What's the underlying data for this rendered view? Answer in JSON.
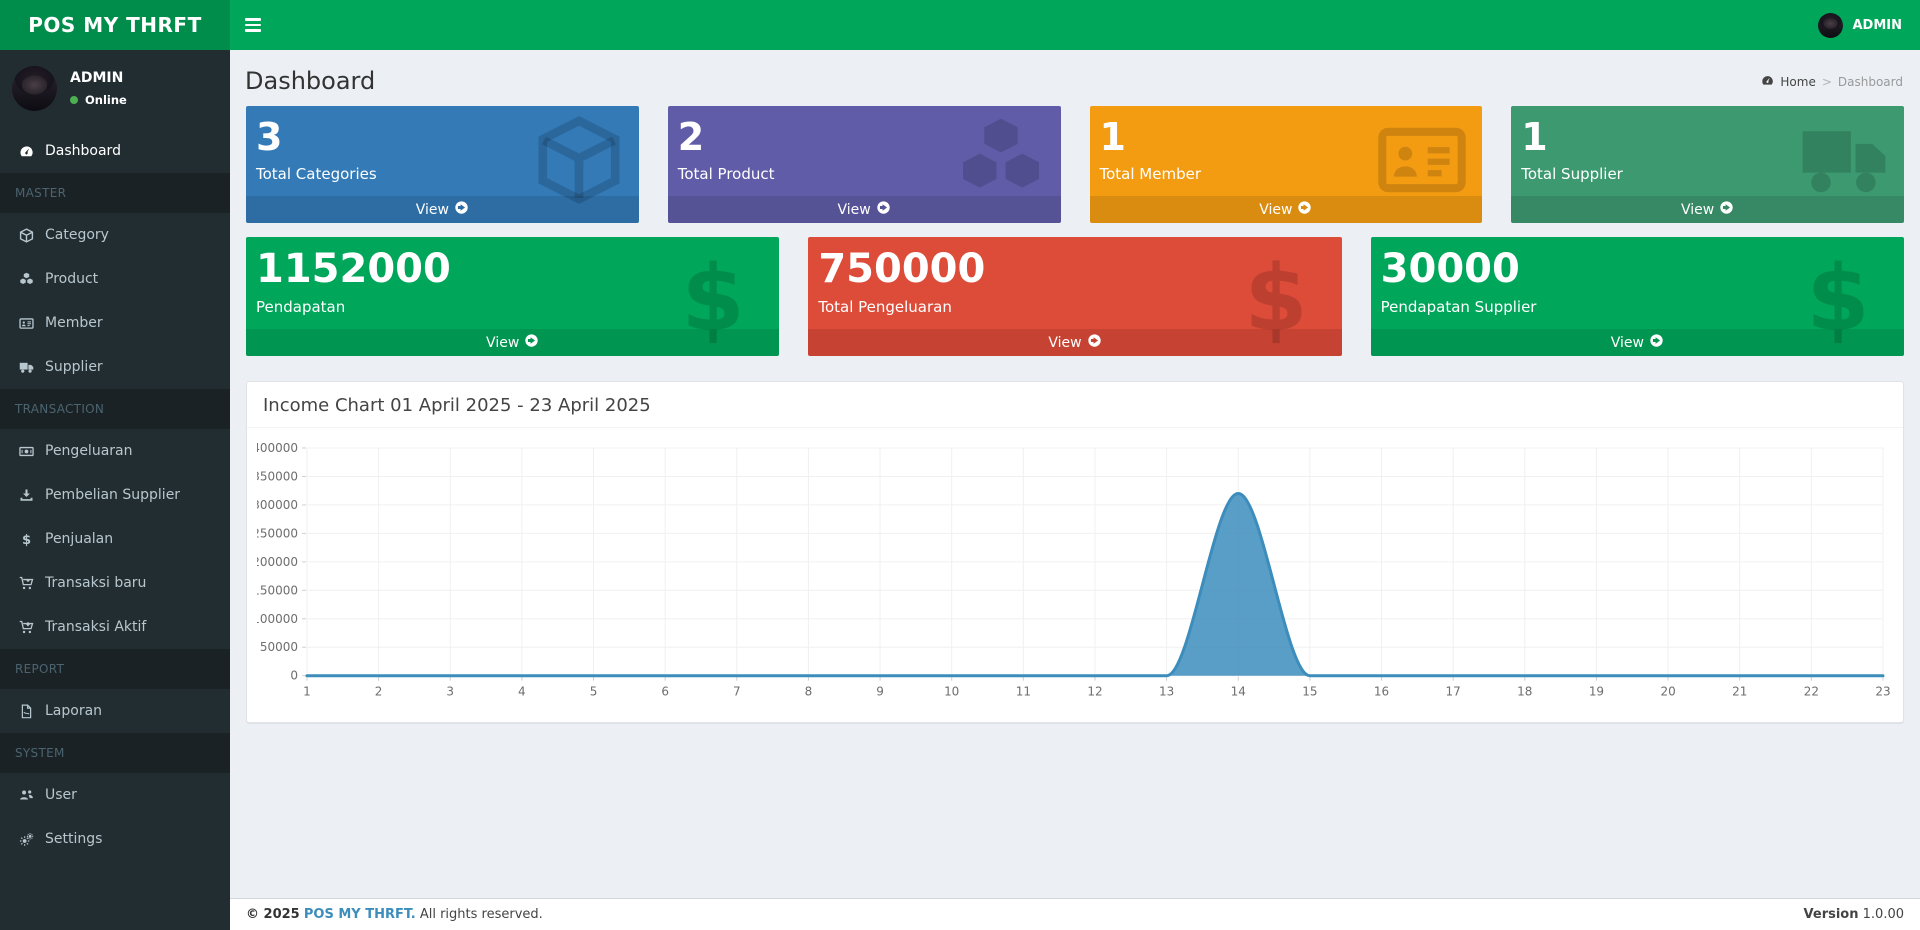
{
  "app": {
    "brand": "POS MY THRFT",
    "user": "ADMIN"
  },
  "sidebar": {
    "user": {
      "name": "ADMIN",
      "status": "Online"
    },
    "sections": [
      {
        "items": [
          {
            "label": "Dashboard",
            "icon": "tachometer-icon"
          }
        ]
      },
      {
        "header": "MASTER",
        "items": [
          {
            "label": "Category",
            "icon": "cube-icon"
          },
          {
            "label": "Product",
            "icon": "cubes-icon"
          },
          {
            "label": "Member",
            "icon": "id-card-icon"
          },
          {
            "label": "Supplier",
            "icon": "truck-icon"
          }
        ]
      },
      {
        "header": "TRANSACTION",
        "items": [
          {
            "label": "Pengeluaran",
            "icon": "money-bill-icon"
          },
          {
            "label": "Pembelian Supplier",
            "icon": "download-icon"
          },
          {
            "label": "Penjualan",
            "icon": "dollar-icon"
          },
          {
            "label": "Transaksi baru",
            "icon": "cart-plus-icon"
          },
          {
            "label": "Transaksi Aktif",
            "icon": "cart-arrow-down-icon"
          }
        ]
      },
      {
        "header": "REPORT",
        "items": [
          {
            "label": "Laporan",
            "icon": "file-pdf-icon"
          }
        ]
      },
      {
        "header": "SYSTEM",
        "items": [
          {
            "label": "User",
            "icon": "users-icon"
          },
          {
            "label": "Settings",
            "icon": "gears-icon"
          }
        ]
      }
    ]
  },
  "content": {
    "page_title": "Dashboard",
    "breadcrumb": {
      "home_icon": "tachometer-icon",
      "home": "Home",
      "separator": ">",
      "current": "Dashboard"
    },
    "stat_boxes_row1": [
      {
        "value": "3",
        "label": "Total Categories",
        "action": "View",
        "color": "#337ab7",
        "icon": "cube-icon"
      },
      {
        "value": "2",
        "label": "Total Product",
        "action": "View",
        "color": "#605ca8",
        "icon": "cubes-icon"
      },
      {
        "value": "1",
        "label": "Total Member",
        "action": "View",
        "color": "#f39c12",
        "icon": "id-card-icon"
      },
      {
        "value": "1",
        "label": "Total Supplier",
        "action": "View",
        "color": "#3d9970",
        "icon": "truck-icon"
      }
    ],
    "stat_boxes_row2": [
      {
        "value": "1152000",
        "label": "Pendapatan",
        "action": "View",
        "color": "#00a65a",
        "icon": "dollar-icon"
      },
      {
        "value": "750000",
        "label": "Total Pengeluaran",
        "action": "View",
        "color": "#dd4b39",
        "icon": "dollar-icon"
      },
      {
        "value": "30000",
        "label": "Pendapatan Supplier",
        "action": "View",
        "color": "#00a65a",
        "icon": "dollar-icon"
      }
    ]
  },
  "chart_data": {
    "type": "area",
    "title": "Income Chart 01 April 2025 - 23 April 2025",
    "x": [
      1,
      2,
      3,
      4,
      5,
      6,
      7,
      8,
      9,
      10,
      11,
      12,
      13,
      14,
      15,
      16,
      17,
      18,
      19,
      20,
      21,
      22,
      23
    ],
    "series": [
      {
        "name": "Income",
        "values": [
          0,
          0,
          0,
          0,
          0,
          0,
          0,
          0,
          0,
          0,
          0,
          0,
          0,
          320000,
          0,
          0,
          0,
          0,
          0,
          0,
          0,
          0,
          0
        ]
      }
    ],
    "xlabel": "",
    "ylabel": "",
    "ylim": [
      0,
      400000
    ],
    "ytick_step": 50000,
    "grid": true,
    "legend": "none",
    "line_color": "#3c8dbc",
    "fill_color": "rgba(60,141,188,0.85)"
  },
  "footer": {
    "copyright": "© 2025",
    "brand": "POS MY THRFT.",
    "rights": "All rights reserved.",
    "version_label": "Version",
    "version": "1.0.00"
  }
}
